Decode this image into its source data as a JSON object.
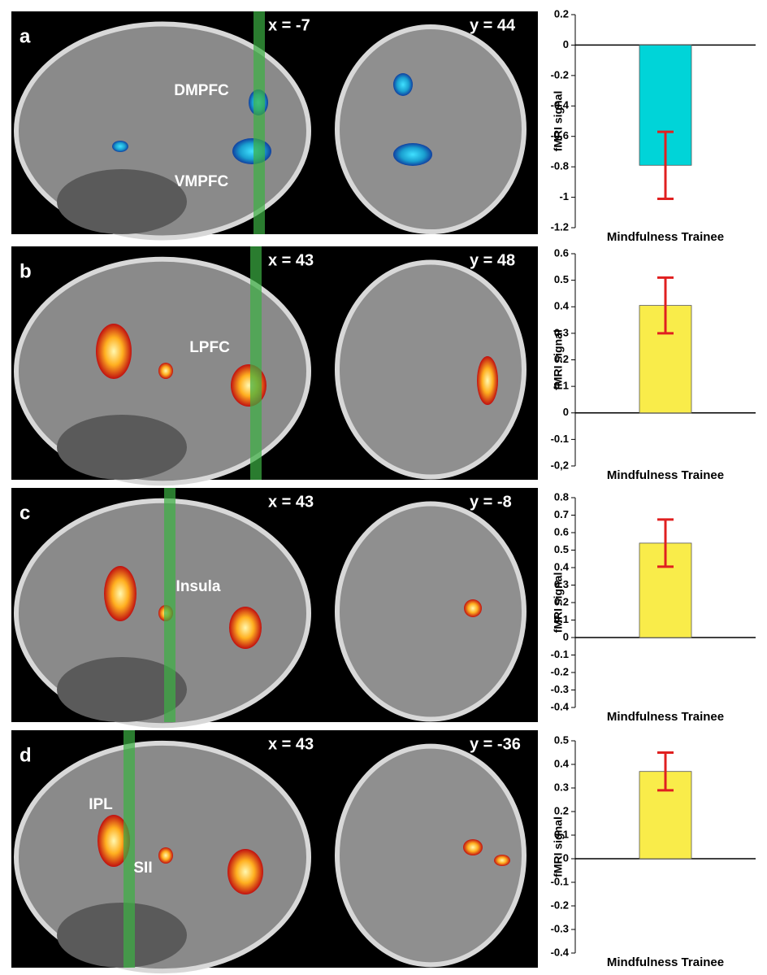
{
  "panels": [
    {
      "label": "a",
      "sagittal_coord": "x = -7",
      "coronal_coord": "y = 44",
      "regions": [
        "DMPFC",
        "VMPFC"
      ]
    },
    {
      "label": "b",
      "sagittal_coord": "x = 43",
      "coronal_coord": "y = 48",
      "regions": [
        "LPFC"
      ]
    },
    {
      "label": "c",
      "sagittal_coord": "x = 43",
      "coronal_coord": "y = -8",
      "regions": [
        "Insula"
      ]
    },
    {
      "label": "d",
      "sagittal_coord": "x = 43",
      "coronal_coord": "y = -36",
      "regions": [
        "IPL",
        "SII"
      ]
    }
  ],
  "chart_data": [
    {
      "type": "bar",
      "y_label": "fMRI signal",
      "categories": [
        "Mindfulness Trainee"
      ],
      "values": [
        -0.79
      ],
      "errors": [
        0.22
      ],
      "color": "#00d4d8",
      "error_color": "#e02020",
      "ylim": [
        -1.2,
        0.2
      ],
      "yticks": [
        -1.2,
        -1,
        -0.8,
        -0.6,
        -0.4,
        -0.2,
        0,
        0.2
      ]
    },
    {
      "type": "bar",
      "y_label": "fMRI signal",
      "categories": [
        "Mindfulness Trainee"
      ],
      "values": [
        0.405
      ],
      "errors": [
        0.105
      ],
      "color": "#f9ec4a",
      "error_color": "#e02020",
      "ylim": [
        -0.2,
        0.6
      ],
      "yticks": [
        {
          "value": -0.2,
          "label": "-0,2"
        },
        -0.1,
        0,
        0.1,
        0.2,
        0.3,
        0.4,
        0.5,
        0.6
      ]
    },
    {
      "type": "bar",
      "y_label": "fMRI signal",
      "categories": [
        "Mindfulness Trainee"
      ],
      "values": [
        0.54
      ],
      "errors": [
        0.135
      ],
      "color": "#f9ec4a",
      "error_color": "#e02020",
      "ylim": [
        -0.4,
        0.8
      ],
      "yticks": [
        -0.4,
        -0.3,
        -0.2,
        -0.1,
        0,
        0.1,
        0.2,
        0.3,
        0.4,
        0.5,
        0.6,
        0.7,
        0.8
      ]
    },
    {
      "type": "bar",
      "y_label": "fMRI signal",
      "categories": [
        "Mindfulness Trainee"
      ],
      "values": [
        0.37
      ],
      "errors": [
        0.08
      ],
      "color": "#f9ec4a",
      "error_color": "#e02020",
      "ylim": [
        -0.4,
        0.5
      ],
      "yticks": [
        -0.4,
        -0.3,
        -0.2,
        -0.1,
        0,
        0.1,
        0.2,
        0.3,
        0.4,
        0.5
      ]
    }
  ]
}
